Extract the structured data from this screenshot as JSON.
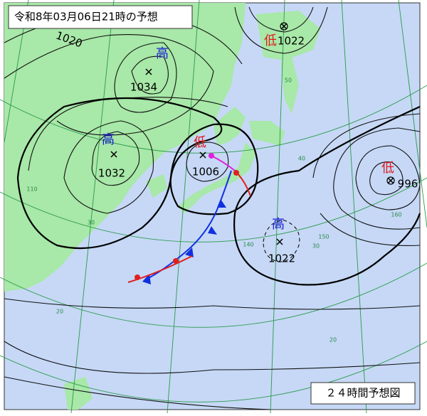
{
  "title": "令和8年03月06日21時の予想",
  "footer": "２４時間予想図",
  "systems": [
    {
      "kind": "高",
      "pressure": 1034
    },
    {
      "kind": "高",
      "pressure": 1032
    },
    {
      "kind": "低",
      "pressure": 1006
    },
    {
      "kind": "低",
      "pressure": 1022
    },
    {
      "kind": "低",
      "pressure": 996
    },
    {
      "kind": "高",
      "pressure": 1022
    }
  ],
  "isobar_labels": [
    1020
  ],
  "grid_labels": [
    50,
    40,
    30,
    20,
    140,
    150,
    160,
    110,
    30,
    20
  ]
}
